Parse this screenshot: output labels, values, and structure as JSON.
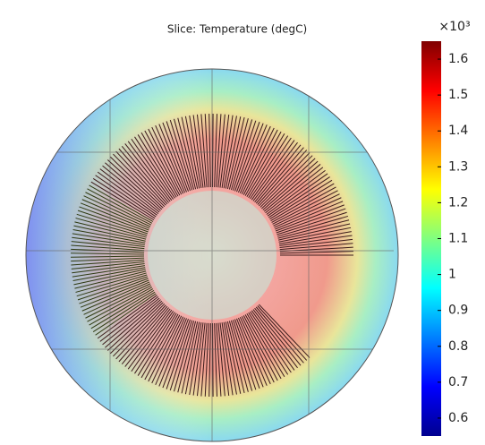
{
  "chart_data": {
    "type": "colormap",
    "title": "Slice: Temperature (degC)",
    "colorbar_multiplier": "×10³",
    "clim": [
      0.55,
      1.65
    ],
    "colorbar_ticks": [
      0.6,
      0.7,
      0.8,
      0.9,
      1,
      1.1,
      1.2,
      1.3,
      1.4,
      1.5,
      1.6
    ],
    "colormap": [
      "#00008f",
      "#0000ff",
      "#0080ff",
      "#00ffff",
      "#80ff80",
      "#ffff00",
      "#ff8000",
      "#ff0000",
      "#800000"
    ]
  }
}
